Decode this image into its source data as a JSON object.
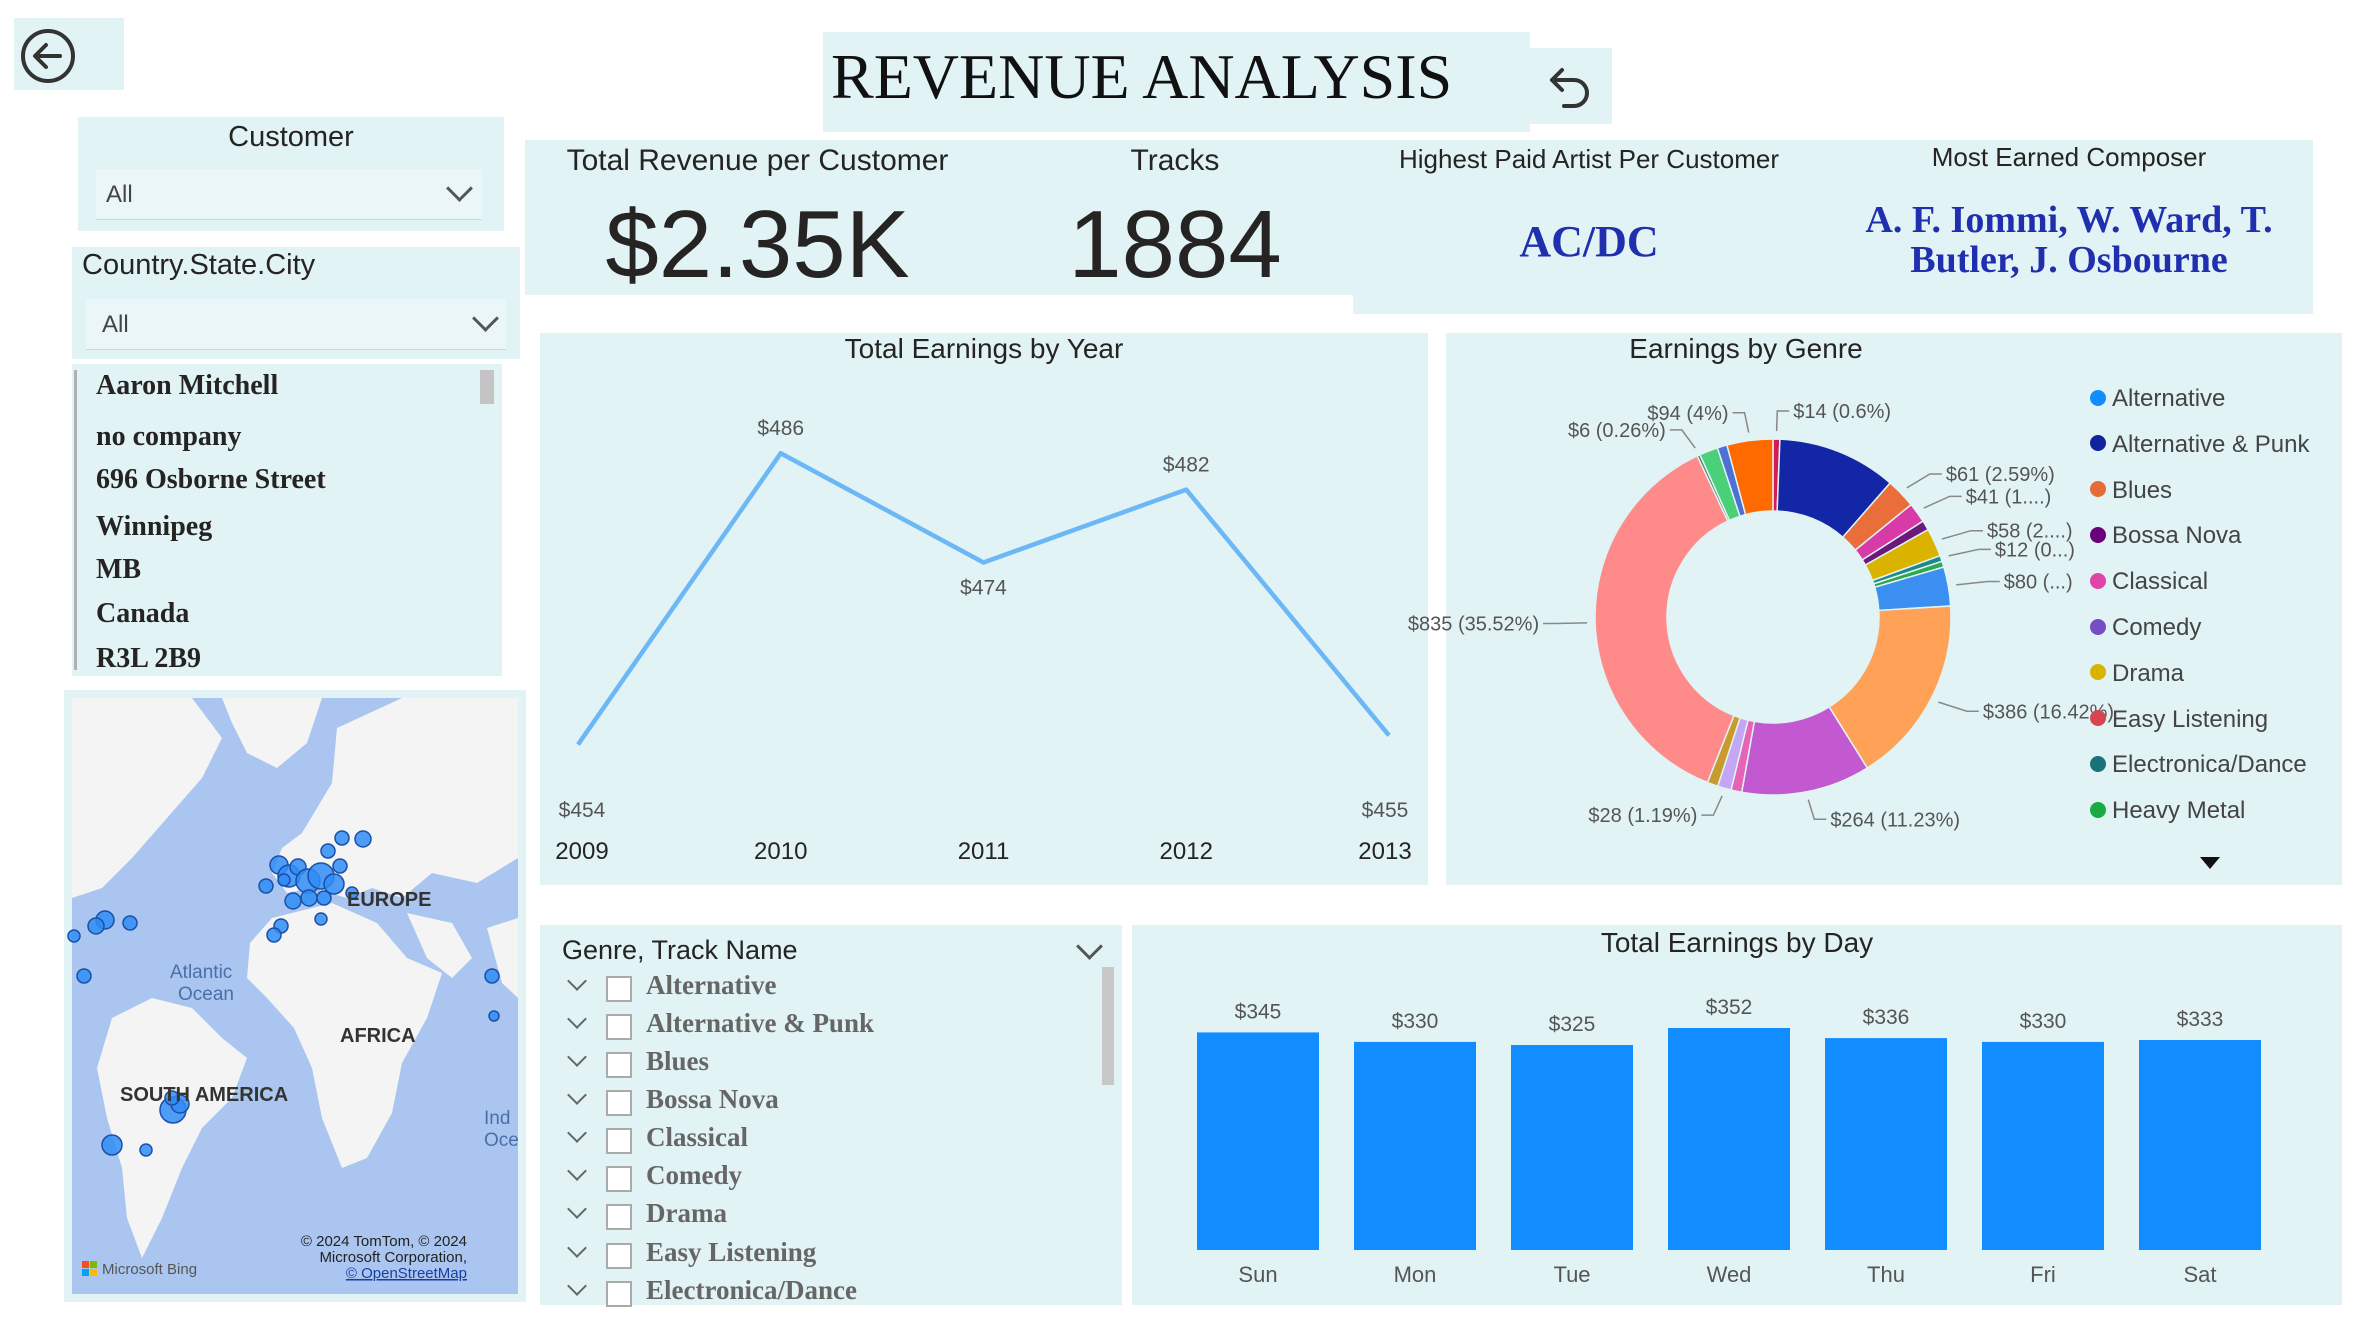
{
  "title": "REVENUE ANALYSIS",
  "filters": {
    "customer_label": "Customer",
    "customer_value": "All",
    "geo_label": "Country.State.City",
    "geo_value": "All"
  },
  "customer_details": [
    "Aaron Mitchell",
    "no company",
    "696 Osborne Street",
    "Winnipeg",
    "MB",
    "Canada",
    "R3L 2B9"
  ],
  "map": {
    "labels": {
      "europe": "EUROPE",
      "atlantic": "Atlantic\nOcean",
      "africa": "AFRICA",
      "south_america": "SOUTH AMERICA",
      "indian": "Ind\nOce"
    },
    "copyright": [
      "© 2024 TomTom, © 2024",
      "Microsoft Corporation,",
      "© OpenStreetMap"
    ],
    "bing": "Microsoft Bing",
    "colors": {
      "water": "#aac6f0",
      "land": "#ffffff",
      "marker": "#2f8cf5"
    }
  },
  "kpis": {
    "revenue_label": "Total Revenue per Customer",
    "revenue_value": "$2.35K",
    "tracks_label": "Tracks",
    "tracks_value": "1884",
    "artist_label": "Highest Paid Artist Per Customer",
    "artist_value": "AC/DC",
    "composer_label": "Most Earned Composer",
    "composer_value": "A. F. Iommi, W. Ward, T. Butler, J. Osbourne"
  },
  "genre_slicer": {
    "header": "Genre, Track Name",
    "items": [
      "Alternative",
      "Alternative & Punk",
      "Blues",
      "Bossa Nova",
      "Classical",
      "Comedy",
      "Drama",
      "Easy Listening",
      "Electronica/Dance"
    ]
  },
  "chart_data": [
    {
      "type": "line",
      "title": "Total Earnings by Year",
      "categories": [
        "2009",
        "2010",
        "2011",
        "2012",
        "2013"
      ],
      "values": [
        454,
        486,
        474,
        482,
        455
      ],
      "data_labels": [
        "$454",
        "$486",
        "$474",
        "$482",
        "$455"
      ],
      "color": "#6cb7f5"
    },
    {
      "type": "pie",
      "title": "Earnings by Genre",
      "legend": [
        "Alternative",
        "Alternative & Punk",
        "Blues",
        "Bossa Nova",
        "Classical",
        "Comedy",
        "Drama",
        "Easy Listening",
        "Electronica/Dance",
        "Heavy Metal"
      ],
      "slices": [
        {
          "value": 14,
          "label": "$14 (0.6%)",
          "color": "#d21c5a"
        },
        {
          "value": 244,
          "label": "",
          "color": "#1226a6"
        },
        {
          "value": 61,
          "label": "$61 (2.59%)",
          "color": "#e96e3a"
        },
        {
          "value": 41,
          "label": "$41 (1....)",
          "color": "#d83aa8"
        },
        {
          "value": 20,
          "label": "",
          "color": "#6b1a7a"
        },
        {
          "value": 58,
          "label": "$58 (2....)",
          "color": "#d9b300"
        },
        {
          "value": 12,
          "label": "$12 (0...)",
          "color": "#1a8a8a"
        },
        {
          "value": 12,
          "label": "",
          "color": "#2ea84c"
        },
        {
          "value": 80,
          "label": "$80 (...)",
          "color": "#3a8ff0"
        },
        {
          "value": 386,
          "label": "$386 (16.42%)",
          "color": "#ffa257"
        },
        {
          "value": 264,
          "label": "$264 (11.23%)",
          "color": "#c259d1"
        },
        {
          "value": 22,
          "label": "",
          "color": "#e664b6"
        },
        {
          "value": 28,
          "label": "$28 (1.19%)",
          "color": "#c5a6f5"
        },
        {
          "value": 22,
          "label": "",
          "color": "#c99a2e"
        },
        {
          "value": 835,
          "label": "$835 (35.52%)",
          "color": "#ff8a8a"
        },
        {
          "value": 6,
          "label": "$6 (0.26%)",
          "color": "#4a7d5a"
        },
        {
          "value": 38,
          "label": "",
          "color": "#4bd07a"
        },
        {
          "value": 20,
          "label": "",
          "color": "#4d6fd6"
        },
        {
          "value": 94,
          "label": "$94 (4%)",
          "color": "#ff6a00"
        }
      ],
      "legend_colors": [
        "#118dff",
        "#12239e",
        "#e66c37",
        "#6b007b",
        "#e044a7",
        "#744ec2",
        "#d9b300",
        "#d64550",
        "#197278",
        "#1aab40"
      ]
    },
    {
      "type": "bar",
      "title": "Total Earnings by Day",
      "categories": [
        "Sun",
        "Mon",
        "Tue",
        "Wed",
        "Thu",
        "Fri",
        "Sat"
      ],
      "values": [
        345,
        330,
        325,
        352,
        336,
        330,
        333
      ],
      "data_labels": [
        "$345",
        "$330",
        "$325",
        "$352",
        "$336",
        "$330",
        "$333"
      ],
      "color": "#118dff"
    }
  ]
}
